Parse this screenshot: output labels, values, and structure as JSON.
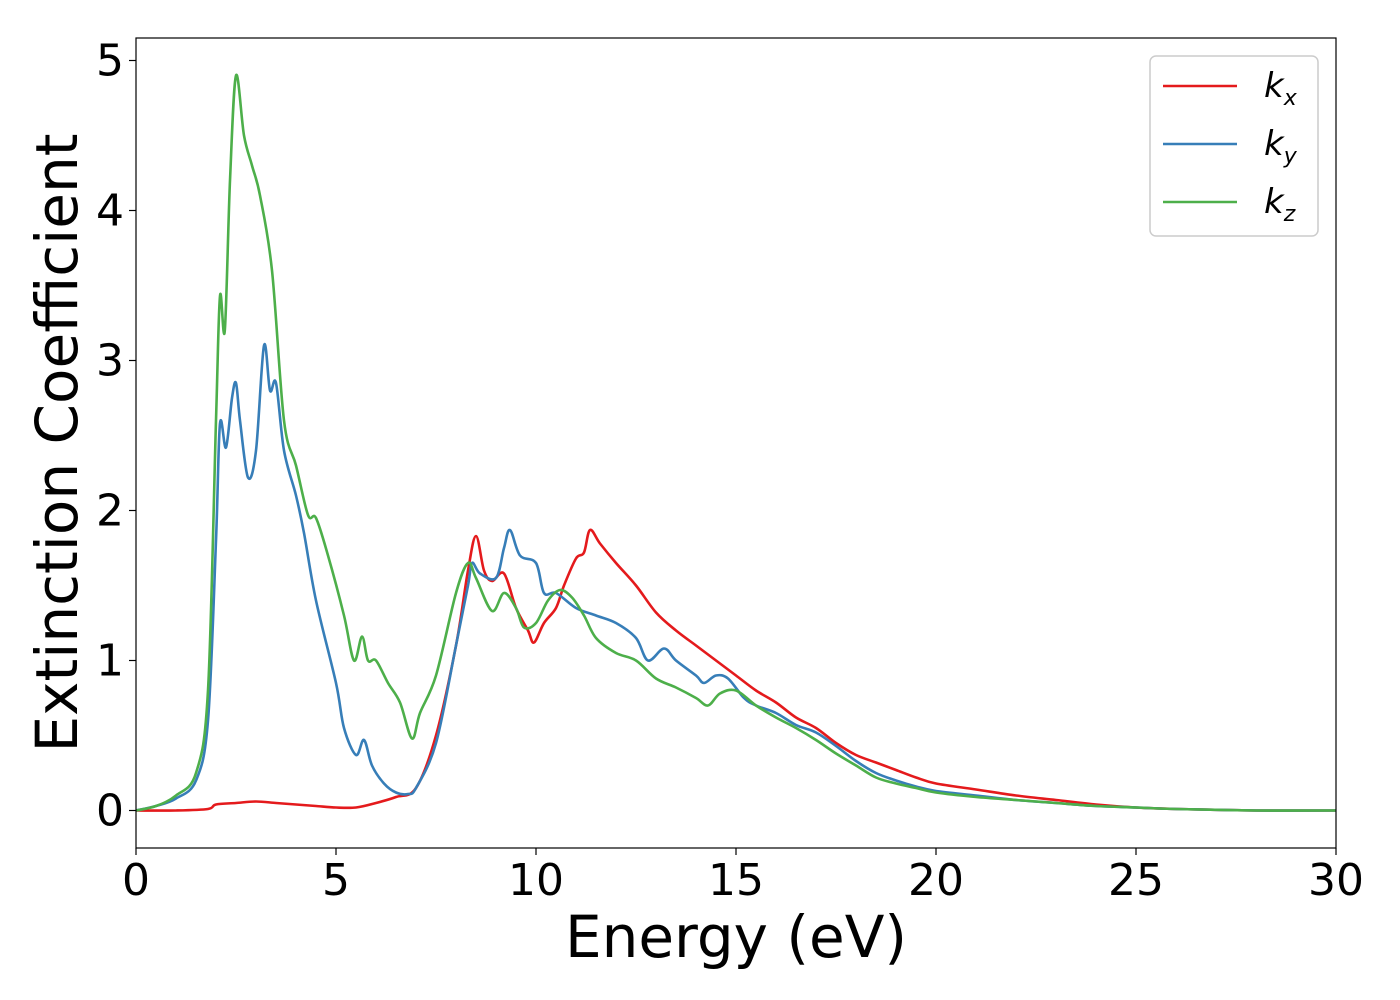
{
  "chart_data": {
    "type": "line",
    "title": "",
    "xlabel": "Energy (eV)",
    "ylabel": "Extinction Coefficient",
    "xlim": [
      0,
      30
    ],
    "ylim": [
      -0.25,
      5.15
    ],
    "xticks": [
      0,
      5,
      10,
      15,
      20,
      25,
      30
    ],
    "yticks": [
      0,
      1,
      2,
      3,
      4,
      5
    ],
    "grid": false,
    "legend_position": "top-right",
    "series": [
      {
        "name": "k",
        "subscript": "x",
        "color": "#e41a1c",
        "points": [
          [
            0,
            0
          ],
          [
            1,
            0.0
          ],
          [
            1.8,
            0.01
          ],
          [
            2,
            0.04
          ],
          [
            2.5,
            0.05
          ],
          [
            3,
            0.06
          ],
          [
            3.5,
            0.05
          ],
          [
            4,
            0.04
          ],
          [
            4.5,
            0.03
          ],
          [
            5,
            0.02
          ],
          [
            5.5,
            0.02
          ],
          [
            6,
            0.05
          ],
          [
            6.5,
            0.09
          ],
          [
            7,
            0.15
          ],
          [
            7.5,
            0.5
          ],
          [
            8,
            1.1
          ],
          [
            8.3,
            1.6
          ],
          [
            8.5,
            1.83
          ],
          [
            8.7,
            1.6
          ],
          [
            8.9,
            1.53
          ],
          [
            9.2,
            1.58
          ],
          [
            9.5,
            1.35
          ],
          [
            9.8,
            1.2
          ],
          [
            9.95,
            1.12
          ],
          [
            10.2,
            1.25
          ],
          [
            10.5,
            1.35
          ],
          [
            10.7,
            1.5
          ],
          [
            11,
            1.68
          ],
          [
            11.2,
            1.72
          ],
          [
            11.35,
            1.87
          ],
          [
            11.6,
            1.78
          ],
          [
            12,
            1.65
          ],
          [
            12.5,
            1.5
          ],
          [
            13,
            1.32
          ],
          [
            13.5,
            1.2
          ],
          [
            14,
            1.1
          ],
          [
            14.5,
            1.0
          ],
          [
            15,
            0.9
          ],
          [
            15.5,
            0.8
          ],
          [
            16,
            0.72
          ],
          [
            16.5,
            0.62
          ],
          [
            17,
            0.55
          ],
          [
            17.5,
            0.45
          ],
          [
            18,
            0.37
          ],
          [
            18.5,
            0.32
          ],
          [
            19,
            0.27
          ],
          [
            19.5,
            0.22
          ],
          [
            20,
            0.18
          ],
          [
            21,
            0.14
          ],
          [
            22,
            0.1
          ],
          [
            23,
            0.07
          ],
          [
            24,
            0.04
          ],
          [
            25,
            0.02
          ],
          [
            26,
            0.01
          ],
          [
            28,
            0
          ],
          [
            30,
            0
          ]
        ]
      },
      {
        "name": "k",
        "subscript": "y",
        "color": "#377eb8",
        "points": [
          [
            0,
            0
          ],
          [
            0.5,
            0.03
          ],
          [
            1,
            0.08
          ],
          [
            1.5,
            0.2
          ],
          [
            1.8,
            0.6
          ],
          [
            2,
            1.8
          ],
          [
            2.1,
            2.58
          ],
          [
            2.25,
            2.42
          ],
          [
            2.4,
            2.75
          ],
          [
            2.5,
            2.85
          ],
          [
            2.6,
            2.6
          ],
          [
            2.8,
            2.22
          ],
          [
            3,
            2.4
          ],
          [
            3.2,
            3.1
          ],
          [
            3.35,
            2.8
          ],
          [
            3.5,
            2.85
          ],
          [
            3.7,
            2.4
          ],
          [
            4,
            2.1
          ],
          [
            4.2,
            1.85
          ],
          [
            4.5,
            1.4
          ],
          [
            5,
            0.85
          ],
          [
            5.2,
            0.55
          ],
          [
            5.5,
            0.37
          ],
          [
            5.7,
            0.47
          ],
          [
            5.9,
            0.3
          ],
          [
            6.2,
            0.18
          ],
          [
            6.5,
            0.12
          ],
          [
            6.8,
            0.11
          ],
          [
            7,
            0.15
          ],
          [
            7.5,
            0.45
          ],
          [
            8,
            1.1
          ],
          [
            8.3,
            1.5
          ],
          [
            8.4,
            1.65
          ],
          [
            8.6,
            1.58
          ],
          [
            9,
            1.55
          ],
          [
            9.2,
            1.75
          ],
          [
            9.35,
            1.87
          ],
          [
            9.6,
            1.7
          ],
          [
            10,
            1.65
          ],
          [
            10.2,
            1.45
          ],
          [
            10.5,
            1.45
          ],
          [
            11,
            1.35
          ],
          [
            11.5,
            1.3
          ],
          [
            12,
            1.25
          ],
          [
            12.5,
            1.15
          ],
          [
            12.8,
            1.0
          ],
          [
            13.2,
            1.08
          ],
          [
            13.5,
            1.0
          ],
          [
            14,
            0.9
          ],
          [
            14.2,
            0.85
          ],
          [
            14.5,
            0.9
          ],
          [
            14.8,
            0.88
          ],
          [
            15.2,
            0.75
          ],
          [
            15.5,
            0.7
          ],
          [
            16,
            0.65
          ],
          [
            16.5,
            0.57
          ],
          [
            17,
            0.52
          ],
          [
            17.5,
            0.43
          ],
          [
            18,
            0.33
          ],
          [
            18.5,
            0.25
          ],
          [
            19,
            0.2
          ],
          [
            19.5,
            0.16
          ],
          [
            20,
            0.13
          ],
          [
            21,
            0.1
          ],
          [
            22,
            0.07
          ],
          [
            23,
            0.05
          ],
          [
            24,
            0.03
          ],
          [
            25,
            0.02
          ],
          [
            26,
            0.01
          ],
          [
            28,
            0
          ],
          [
            30,
            0
          ]
        ]
      },
      {
        "name": "k",
        "subscript": "z",
        "color": "#4daf4a",
        "points": [
          [
            0,
            0
          ],
          [
            0.5,
            0.03
          ],
          [
            1,
            0.1
          ],
          [
            1.5,
            0.25
          ],
          [
            1.8,
            0.8
          ],
          [
            2,
            2.6
          ],
          [
            2.1,
            3.43
          ],
          [
            2.22,
            3.2
          ],
          [
            2.35,
            4.2
          ],
          [
            2.5,
            4.9
          ],
          [
            2.7,
            4.5
          ],
          [
            2.9,
            4.3
          ],
          [
            3.1,
            4.1
          ],
          [
            3.4,
            3.6
          ],
          [
            3.7,
            2.6
          ],
          [
            4,
            2.3
          ],
          [
            4.3,
            1.97
          ],
          [
            4.5,
            1.95
          ],
          [
            4.8,
            1.7
          ],
          [
            5.2,
            1.3
          ],
          [
            5.45,
            1.0
          ],
          [
            5.65,
            1.16
          ],
          [
            5.8,
            1.0
          ],
          [
            6,
            1.0
          ],
          [
            6.3,
            0.85
          ],
          [
            6.6,
            0.72
          ],
          [
            6.9,
            0.48
          ],
          [
            7.1,
            0.65
          ],
          [
            7.5,
            0.9
          ],
          [
            8,
            1.45
          ],
          [
            8.3,
            1.65
          ],
          [
            8.5,
            1.55
          ],
          [
            8.9,
            1.33
          ],
          [
            9.2,
            1.45
          ],
          [
            9.5,
            1.35
          ],
          [
            9.7,
            1.22
          ],
          [
            10,
            1.25
          ],
          [
            10.3,
            1.4
          ],
          [
            10.6,
            1.47
          ],
          [
            10.9,
            1.42
          ],
          [
            11.2,
            1.3
          ],
          [
            11.5,
            1.15
          ],
          [
            12,
            1.05
          ],
          [
            12.5,
            1.0
          ],
          [
            13,
            0.88
          ],
          [
            13.5,
            0.82
          ],
          [
            14,
            0.75
          ],
          [
            14.3,
            0.7
          ],
          [
            14.6,
            0.78
          ],
          [
            15,
            0.8
          ],
          [
            15.5,
            0.7
          ],
          [
            16,
            0.62
          ],
          [
            16.5,
            0.55
          ],
          [
            17,
            0.47
          ],
          [
            17.5,
            0.38
          ],
          [
            18,
            0.3
          ],
          [
            18.5,
            0.22
          ],
          [
            19,
            0.18
          ],
          [
            19.5,
            0.15
          ],
          [
            20,
            0.12
          ],
          [
            21,
            0.09
          ],
          [
            22,
            0.07
          ],
          [
            23,
            0.05
          ],
          [
            24,
            0.03
          ],
          [
            25,
            0.02
          ],
          [
            26,
            0.01
          ],
          [
            28,
            0
          ],
          [
            30,
            0
          ]
        ]
      }
    ]
  }
}
